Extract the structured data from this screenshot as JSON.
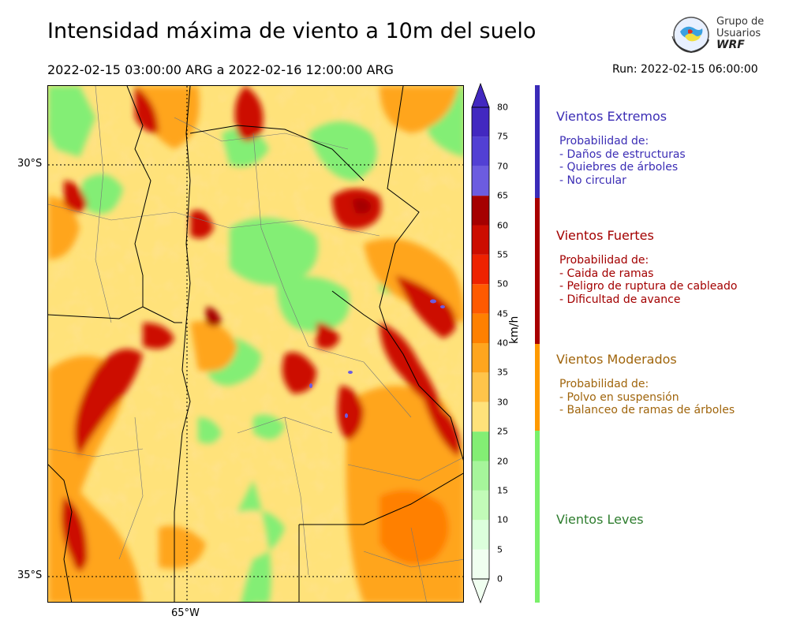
{
  "header": {
    "title": "Intensidad máxima de viento a 10m del suelo",
    "subtitle": "2022-02-15 03:00:00 ARG  a  2022-02-16 12:00:00 ARG",
    "run": "Run: 2022-02-15 06:00:00"
  },
  "logo": {
    "line1": "Grupo de",
    "line2": "Usuarios",
    "line3": "WRF"
  },
  "map": {
    "lat_labels": [
      "30°S",
      "35°S"
    ],
    "lon_labels": [
      "65°W"
    ]
  },
  "colorbar": {
    "unit": "km/h",
    "levels": [
      0,
      5,
      10,
      15,
      20,
      25,
      30,
      35,
      40,
      45,
      50,
      55,
      60,
      65,
      70,
      75,
      80
    ],
    "tick_labels": [
      "0",
      "5",
      "10",
      "15",
      "20",
      "25",
      "30",
      "35",
      "40",
      "45",
      "50",
      "55",
      "60",
      "65",
      "70",
      "75",
      "80"
    ],
    "colors": [
      "#f0fff0",
      "#dcffdc",
      "#c2fbb8",
      "#a6f59b",
      "#83ee74",
      "#ffe27a",
      "#ffc44a",
      "#ffa51e",
      "#ff8000",
      "#ff5a00",
      "#ee2200",
      "#cc0d00",
      "#a50000",
      "#6c5ce0",
      "#5240d4",
      "#4228c0"
    ]
  },
  "categories": [
    {
      "title": "Vientos Extremos",
      "color": "#3b2db5",
      "bar_color": "#3a2bb8",
      "intro": "Probabilidad de:",
      "items": [
        "- Daños de estructuras",
        "- Quiebres de árboles",
        "- No circular"
      ]
    },
    {
      "title": "Vientos Fuertes",
      "color": "#a30000",
      "bar_color": "#a80000",
      "intro": "Probabilidad de:",
      "items": [
        "- Caida de ramas",
        "- Peligro de ruptura de cableado",
        "- Dificultad de avance"
      ]
    },
    {
      "title": "Vientos Moderados",
      "color": "#a0650c",
      "bar_color": "#ff9a00",
      "intro": "Probabilidad de:",
      "items": [
        "- Polvo en suspensión",
        "- Balanceo de ramas de árboles"
      ]
    },
    {
      "title": "Vientos Leves",
      "color": "#2e7d2e",
      "bar_color": "#7af06a",
      "intro": "",
      "items": []
    }
  ]
}
